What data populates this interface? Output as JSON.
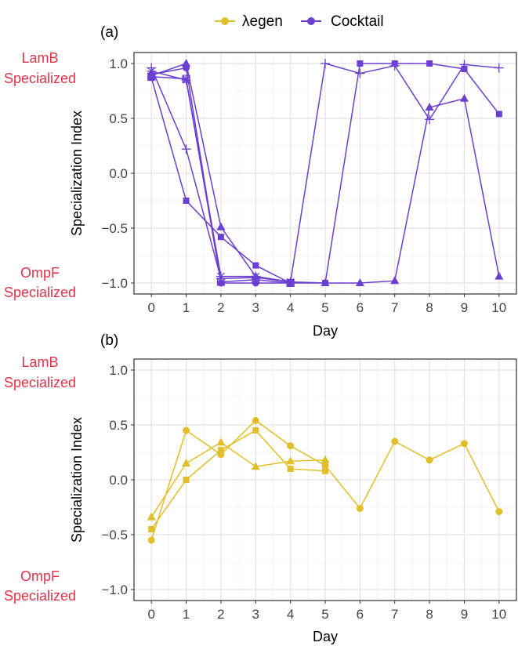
{
  "legend": {
    "items": [
      {
        "label": "λegen",
        "color": "#e0bf2a"
      },
      {
        "label": "Cocktail",
        "color": "#6a3fd1"
      }
    ]
  },
  "side_labels": {
    "top_line1": "LamB",
    "top_line2": "Specialized",
    "bottom_line1": "OmpF",
    "bottom_line2": "Specialized"
  },
  "chart_data": [
    {
      "type": "line",
      "panel_label": "(a)",
      "xlabel": "Day",
      "ylabel": "Specialization Index",
      "xlim": [
        -0.5,
        10.5
      ],
      "ylim": [
        -1.1,
        1.1
      ],
      "x_ticks": [
        0,
        1,
        2,
        3,
        4,
        5,
        6,
        7,
        8,
        9,
        10
      ],
      "y_ticks": [
        -1.0,
        -0.5,
        0.0,
        0.5,
        1.0
      ],
      "y_tick_labels": [
        "−1.0",
        "−0.5",
        "0.0",
        "0.5",
        "1.0"
      ],
      "grid": true,
      "color": "#6a3fd1",
      "series": [
        {
          "name": "Cocktail replicate (square)",
          "marker": "square",
          "x": [
            0,
            1,
            2,
            3,
            4,
            5,
            6,
            7,
            8,
            9,
            10
          ],
          "y": [
            0.87,
            -0.25,
            -0.58,
            -0.84,
            -1.0,
            -1.0,
            1.0,
            1.0,
            1.0,
            0.95,
            0.54
          ]
        },
        {
          "name": "Cocktail replicate (triangle)",
          "marker": "triangle",
          "x": [
            0,
            1,
            2,
            3,
            4,
            5,
            6,
            7,
            8,
            9,
            10
          ],
          "y": [
            0.89,
            1.0,
            -0.49,
            -0.94,
            -0.99,
            -1.0,
            -1.0,
            -0.98,
            0.6,
            0.68,
            -0.94
          ]
        },
        {
          "name": "Cocktail replicate (plus)",
          "marker": "plus",
          "x": [
            0,
            1,
            2,
            3,
            4,
            5,
            6,
            7,
            8,
            9,
            10
          ],
          "y": [
            0.96,
            0.22,
            -0.96,
            -0.95,
            -0.99,
            1.0,
            0.91,
            0.98,
            0.49,
            0.99,
            0.96
          ]
        },
        {
          "name": "Cocktail replicate (star)",
          "marker": "star",
          "x": [
            0,
            1,
            2,
            3,
            4
          ],
          "y": [
            0.93,
            0.85,
            -0.94,
            -0.94,
            -0.99
          ]
        },
        {
          "name": "Cocktail replicate (circle)",
          "marker": "circle",
          "x": [
            0,
            1,
            2,
            3,
            4
          ],
          "y": [
            0.9,
            0.96,
            -1.0,
            -1.0,
            -1.0
          ]
        },
        {
          "name": "Cocktail replicate (cross-square)",
          "marker": "crosssquare",
          "x": [
            0,
            1,
            2,
            3,
            4
          ],
          "y": [
            0.88,
            0.86,
            -0.99,
            -0.97,
            -1.0
          ]
        }
      ]
    },
    {
      "type": "line",
      "panel_label": "(b)",
      "xlabel": "Day",
      "ylabel": "Specialization Index",
      "xlim": [
        -0.5,
        10.5
      ],
      "ylim": [
        -1.1,
        1.1
      ],
      "x_ticks": [
        0,
        1,
        2,
        3,
        4,
        5,
        6,
        7,
        8,
        9,
        10
      ],
      "y_ticks": [
        -1.0,
        -0.5,
        0.0,
        0.5,
        1.0
      ],
      "y_tick_labels": [
        "−1.0",
        "−0.5",
        "0.0",
        "0.5",
        "1.0"
      ],
      "grid": true,
      "color": "#e0bf2a",
      "series": [
        {
          "name": "λegen replicate (circle)",
          "marker": "circle",
          "x": [
            0,
            1,
            2,
            3,
            4,
            5,
            6,
            7,
            8,
            9,
            10
          ],
          "y": [
            -0.55,
            0.45,
            0.23,
            0.54,
            0.31,
            0.13,
            -0.26,
            0.35,
            0.18,
            0.33,
            -0.29
          ]
        },
        {
          "name": "λegen replicate (triangle)",
          "marker": "triangle",
          "x": [
            0,
            1,
            2,
            3,
            4,
            5
          ],
          "y": [
            -0.34,
            0.15,
            0.34,
            0.12,
            0.17,
            0.18
          ]
        },
        {
          "name": "λegen replicate (square)",
          "marker": "square",
          "x": [
            0,
            1,
            2,
            3,
            4,
            5
          ],
          "y": [
            -0.45,
            0.0,
            0.27,
            0.45,
            0.1,
            0.08
          ]
        }
      ]
    }
  ]
}
